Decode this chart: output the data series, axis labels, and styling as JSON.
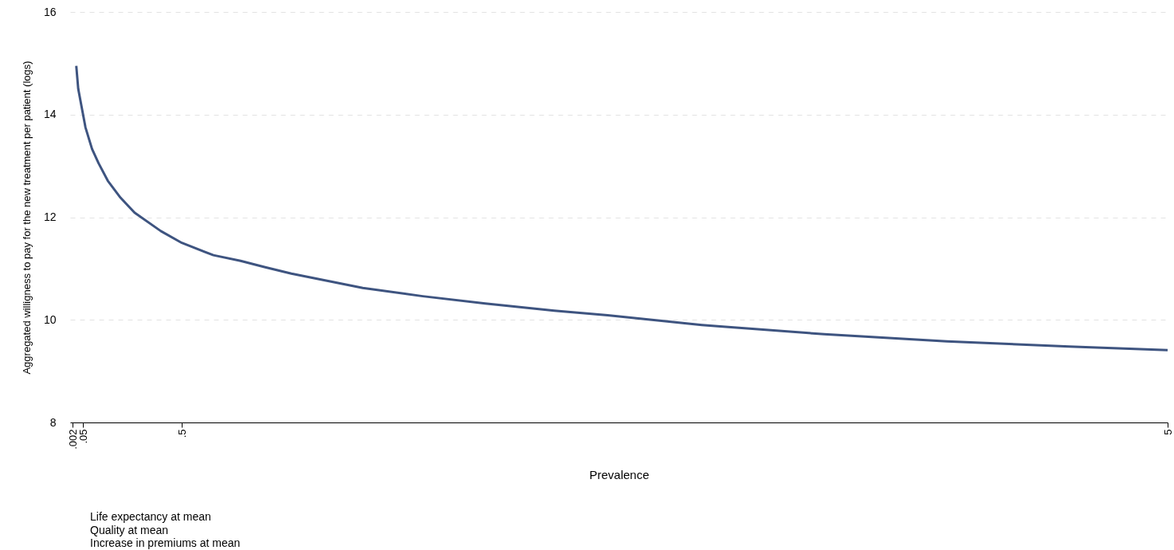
{
  "chart_data": {
    "type": "line",
    "xlabel": "Prevalence",
    "ylabel": "Aggregated willigness to pay for the new treatment per patient (logs)",
    "annotations": [
      "Life expectancy at mean",
      "Quality at mean",
      "Increase in premiums at mean"
    ],
    "xlim": [
      -0.01,
      5
    ],
    "xticks": [
      {
        "value": 0.002,
        "label": ".002"
      },
      {
        "value": 0.05,
        "label": ".05"
      },
      {
        "value": 0.5,
        "label": ".5"
      },
      5
    ],
    "ylim": [
      8,
      16
    ],
    "yticks": [
      8,
      10,
      12,
      14,
      16
    ],
    "grid": "y",
    "marker": "none",
    "line_style": "solid",
    "series": [
      {
        "color": "#3e5480",
        "x": [
          0.018,
          0.027,
          0.042,
          0.06,
          0.09,
          0.12,
          0.162,
          0.22,
          0.284,
          0.404,
          0.5,
          0.644,
          0.768,
          0.877,
          1.0,
          1.326,
          1.6,
          1.885,
          2.2,
          2.444,
          2.874,
          2.958,
          3.433,
          3.992,
          4.551,
          5.0
        ],
        "values": [
          14.95,
          14.5,
          14.16,
          13.75,
          13.33,
          13.05,
          12.71,
          12.38,
          12.09,
          11.73,
          11.5,
          11.26,
          11.15,
          11.03,
          10.9,
          10.62,
          10.46,
          10.32,
          10.18,
          10.09,
          9.9,
          9.87,
          9.72,
          9.58,
          9.48,
          9.41
        ]
      }
    ]
  }
}
